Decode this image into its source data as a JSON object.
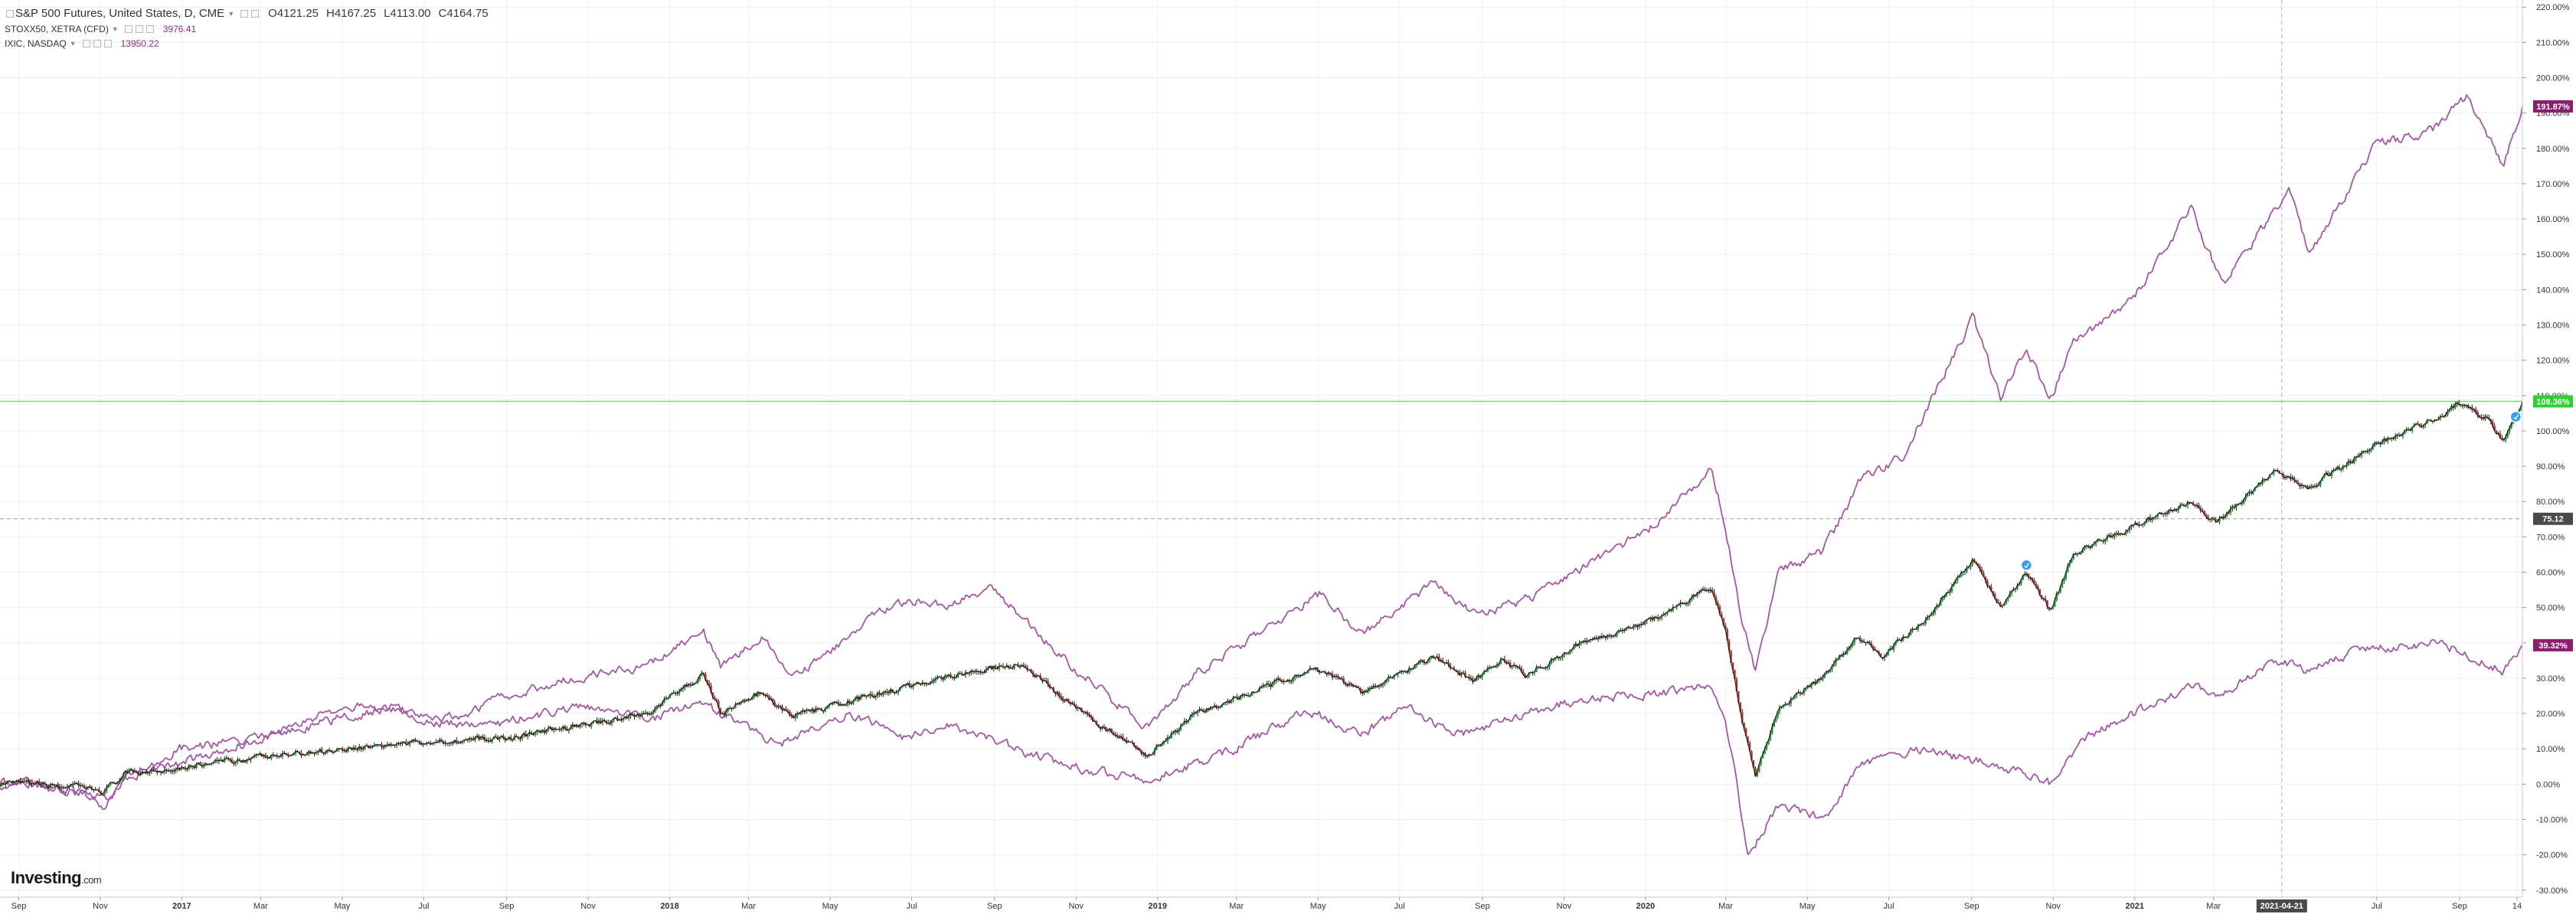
{
  "legend": {
    "main": {
      "title": "S&P 500 Futures, United States, D, CME",
      "open": "O4121.25",
      "high": "H4167.25",
      "low": "L4113.00",
      "close": "C4164.75"
    },
    "compare": [
      {
        "title": "STOXX50, XETRA (CFD)",
        "value": "3976.41",
        "color": "#8e2a8e"
      },
      {
        "title": "IXIC, NASDAQ",
        "value": "13950.22",
        "color": "#8e2a8e"
      }
    ]
  },
  "brand": {
    "logo_text": "Investing",
    "logo_suffix": ".com"
  },
  "colors": {
    "compare_line": "#a358a3",
    "up_candle": "#1f9d2f",
    "down_candle": "#b0302a",
    "main_line": "#111111",
    "label_purple": "#8b1f6e",
    "label_green": "#2fd02f",
    "crosshair_label": "#4a4a4a",
    "event_marker": "#3aa0e6"
  },
  "chart_data": {
    "type": "line",
    "title": "S&P 500 Futures, United States, D, CME",
    "xlabel": "",
    "ylabel": "",
    "x_range": [
      "2016-08-18",
      "2021-10-18"
    ],
    "ylim": [
      -32,
      222
    ],
    "y_scale": "linear",
    "y_tick_unit": "%",
    "y_ticks": [
      -30,
      -20,
      -10,
      0,
      10,
      20,
      30,
      40,
      50,
      60,
      70,
      80,
      90,
      100,
      110,
      120,
      130,
      140,
      150,
      160,
      170,
      180,
      190,
      200,
      210,
      220
    ],
    "y_tick_labels": [
      "-30.00%",
      "-20.00%",
      "-10.00%",
      "0.00%",
      "10.00%",
      "20.00%",
      "30.00%",
      "40.00%",
      "50.00%",
      "60.00%",
      "70.00%",
      "80.00%",
      "90.00%",
      "100.00%",
      "110.00%",
      "120.00%",
      "130.00%",
      "140.00%",
      "150.00%",
      "160.00%",
      "170.00%",
      "180.00%",
      "190.00%",
      "200.00%",
      "210.00%",
      "220.00%"
    ],
    "x_ticks": [
      {
        "date": "2016-09-01",
        "label": "Sep",
        "bold": false
      },
      {
        "date": "2016-11-01",
        "label": "Nov",
        "bold": false
      },
      {
        "date": "2017-01-01",
        "label": "2017",
        "bold": true
      },
      {
        "date": "2017-03-01",
        "label": "Mar",
        "bold": false
      },
      {
        "date": "2017-05-01",
        "label": "May",
        "bold": false
      },
      {
        "date": "2017-07-01",
        "label": "Jul",
        "bold": false
      },
      {
        "date": "2017-09-01",
        "label": "Sep",
        "bold": false
      },
      {
        "date": "2017-11-01",
        "label": "Nov",
        "bold": false
      },
      {
        "date": "2018-01-01",
        "label": "2018",
        "bold": true
      },
      {
        "date": "2018-03-01",
        "label": "Mar",
        "bold": false
      },
      {
        "date": "2018-05-01",
        "label": "May",
        "bold": false
      },
      {
        "date": "2018-07-01",
        "label": "Jul",
        "bold": false
      },
      {
        "date": "2018-09-01",
        "label": "Sep",
        "bold": false
      },
      {
        "date": "2018-11-01",
        "label": "Nov",
        "bold": false
      },
      {
        "date": "2019-01-01",
        "label": "2019",
        "bold": true
      },
      {
        "date": "2019-03-01",
        "label": "Mar",
        "bold": false
      },
      {
        "date": "2019-05-01",
        "label": "May",
        "bold": false
      },
      {
        "date": "2019-07-01",
        "label": "Jul",
        "bold": false
      },
      {
        "date": "2019-09-01",
        "label": "Sep",
        "bold": false
      },
      {
        "date": "2019-11-01",
        "label": "Nov",
        "bold": false
      },
      {
        "date": "2020-01-01",
        "label": "2020",
        "bold": true
      },
      {
        "date": "2020-03-01",
        "label": "Mar",
        "bold": false
      },
      {
        "date": "2020-05-01",
        "label": "May",
        "bold": false
      },
      {
        "date": "2020-07-01",
        "label": "Jul",
        "bold": false
      },
      {
        "date": "2020-09-01",
        "label": "Sep",
        "bold": false
      },
      {
        "date": "2020-11-01",
        "label": "Nov",
        "bold": false
      },
      {
        "date": "2021-01-01",
        "label": "2021",
        "bold": true
      },
      {
        "date": "2021-03-01",
        "label": "Mar",
        "bold": false
      },
      {
        "date": "2021-07-01",
        "label": "Jul",
        "bold": false
      },
      {
        "date": "2021-09-01",
        "label": "Sep",
        "bold": false
      },
      {
        "date": "2021-10-14",
        "label": "14",
        "bold": false
      }
    ],
    "crosshair": {
      "date": "2021-04-21",
      "date_label": "2021-04-21",
      "value": 75.12,
      "value_label": "75.12"
    },
    "horizontal_line": {
      "value": 108.36,
      "color": "#7ed67e"
    },
    "series": [
      {
        "name": "S&P 500 Futures, United States, D, CME",
        "style": "candles",
        "last_value": 108.36,
        "last_label": "108.36%",
        "points": [
          [
            "2016-08-18",
            0
          ],
          [
            "2016-09-15",
            0
          ],
          [
            "2016-10-15",
            -1
          ],
          [
            "2016-11-04",
            -2
          ],
          [
            "2016-11-20",
            3
          ],
          [
            "2016-12-15",
            4
          ],
          [
            "2017-02-15",
            7
          ],
          [
            "2017-05-01",
            10
          ],
          [
            "2017-07-01",
            12
          ],
          [
            "2017-09-01",
            13
          ],
          [
            "2017-11-01",
            17
          ],
          [
            "2017-12-15",
            20
          ],
          [
            "2018-01-26",
            31
          ],
          [
            "2018-02-09",
            20
          ],
          [
            "2018-03-10",
            26
          ],
          [
            "2018-04-02",
            19
          ],
          [
            "2018-06-01",
            25
          ],
          [
            "2018-08-01",
            31
          ],
          [
            "2018-09-20",
            34
          ],
          [
            "2018-10-30",
            22
          ],
          [
            "2018-12-24",
            8
          ],
          [
            "2019-01-31",
            20
          ],
          [
            "2019-04-30",
            33
          ],
          [
            "2019-06-03",
            26
          ],
          [
            "2019-07-26",
            36
          ],
          [
            "2019-08-26",
            29
          ],
          [
            "2019-09-15",
            35
          ],
          [
            "2019-10-03",
            31
          ],
          [
            "2019-11-15",
            40
          ],
          [
            "2020-01-10",
            47
          ],
          [
            "2020-02-19",
            56
          ],
          [
            "2020-03-01",
            44
          ],
          [
            "2020-03-12",
            20
          ],
          [
            "2020-03-23",
            2
          ],
          [
            "2020-04-10",
            22
          ],
          [
            "2020-05-13",
            30
          ],
          [
            "2020-06-08",
            42
          ],
          [
            "2020-06-26",
            36
          ],
          [
            "2020-08-01",
            48
          ],
          [
            "2020-09-02",
            64
          ],
          [
            "2020-09-23",
            50
          ],
          [
            "2020-10-12",
            60
          ],
          [
            "2020-10-30",
            49
          ],
          [
            "2020-11-16",
            65
          ],
          [
            "2020-12-31",
            73
          ],
          [
            "2021-02-12",
            80
          ],
          [
            "2021-03-04",
            74
          ],
          [
            "2021-04-16",
            89
          ],
          [
            "2021-05-12",
            84
          ],
          [
            "2021-06-30",
            96
          ],
          [
            "2021-08-12",
            103
          ],
          [
            "2021-09-02",
            108
          ],
          [
            "2021-09-20",
            104
          ],
          [
            "2021-10-04",
            97
          ],
          [
            "2021-10-18",
            108.36
          ]
        ]
      },
      {
        "name": "IXIC, NASDAQ",
        "style": "line",
        "last_value": 191.87,
        "last_label": "191.87%",
        "points": [
          [
            "2016-08-18",
            0
          ],
          [
            "2016-09-15",
            0
          ],
          [
            "2016-10-15",
            -2
          ],
          [
            "2016-11-04",
            -6
          ],
          [
            "2016-11-20",
            3
          ],
          [
            "2016-12-31",
            6
          ],
          [
            "2017-03-01",
            13
          ],
          [
            "2017-06-08",
            22
          ],
          [
            "2017-07-10",
            17
          ],
          [
            "2017-09-01",
            25
          ],
          [
            "2017-11-01",
            31
          ],
          [
            "2017-12-15",
            33
          ],
          [
            "2018-01-26",
            44
          ],
          [
            "2018-02-08",
            33
          ],
          [
            "2018-03-12",
            42
          ],
          [
            "2018-04-02",
            30
          ],
          [
            "2018-06-20",
            52
          ],
          [
            "2018-08-01",
            51
          ],
          [
            "2018-08-29",
            56
          ],
          [
            "2018-10-30",
            33
          ],
          [
            "2018-12-24",
            16
          ],
          [
            "2019-02-01",
            32
          ],
          [
            "2019-05-03",
            54
          ],
          [
            "2019-06-03",
            42
          ],
          [
            "2019-07-26",
            57
          ],
          [
            "2019-08-26",
            48
          ],
          [
            "2019-10-02",
            52
          ],
          [
            "2019-11-15",
            61
          ],
          [
            "2020-01-10",
            74
          ],
          [
            "2020-02-19",
            89
          ],
          [
            "2020-03-01",
            73
          ],
          [
            "2020-03-12",
            48
          ],
          [
            "2020-03-23",
            32
          ],
          [
            "2020-04-10",
            60
          ],
          [
            "2020-05-13",
            66
          ],
          [
            "2020-06-10",
            86
          ],
          [
            "2020-07-12",
            93
          ],
          [
            "2020-09-02",
            132
          ],
          [
            "2020-09-23",
            109
          ],
          [
            "2020-10-12",
            124
          ],
          [
            "2020-10-30",
            109
          ],
          [
            "2020-11-16",
            125
          ],
          [
            "2020-12-31",
            138
          ],
          [
            "2021-02-12",
            163
          ],
          [
            "2021-03-08",
            141
          ],
          [
            "2021-04-26",
            168
          ],
          [
            "2021-05-12",
            150
          ],
          [
            "2021-06-30",
            181
          ],
          [
            "2021-08-12",
            185
          ],
          [
            "2021-09-07",
            195
          ],
          [
            "2021-09-20",
            185
          ],
          [
            "2021-10-04",
            175
          ],
          [
            "2021-10-18",
            191.87
          ]
        ]
      },
      {
        "name": "STOXX50, XETRA (CFD)",
        "style": "line",
        "last_value": 39.32,
        "last_label": "39.32%",
        "points": [
          [
            "2016-08-18",
            1
          ],
          [
            "2016-09-15",
            0
          ],
          [
            "2016-11-04",
            -4
          ],
          [
            "2016-11-20",
            1
          ],
          [
            "2016-12-31",
            10
          ],
          [
            "2017-02-15",
            12
          ],
          [
            "2017-05-05",
            22
          ],
          [
            "2017-06-15",
            21
          ],
          [
            "2017-08-10",
            16
          ],
          [
            "2017-09-30",
            20
          ],
          [
            "2017-11-01",
            22
          ],
          [
            "2017-12-15",
            18
          ],
          [
            "2018-01-23",
            23
          ],
          [
            "2018-03-23",
            11
          ],
          [
            "2018-05-15",
            20
          ],
          [
            "2018-06-28",
            13
          ],
          [
            "2018-07-26",
            17
          ],
          [
            "2018-10-26",
            5
          ],
          [
            "2018-12-27",
            1
          ],
          [
            "2019-02-28",
            10
          ],
          [
            "2019-04-23",
            21
          ],
          [
            "2019-06-03",
            14
          ],
          [
            "2019-07-04",
            22
          ],
          [
            "2019-08-15",
            14
          ],
          [
            "2019-10-01",
            20
          ],
          [
            "2019-11-15",
            24
          ],
          [
            "2020-01-20",
            26
          ],
          [
            "2020-02-19",
            28
          ],
          [
            "2020-03-01",
            18
          ],
          [
            "2020-03-18",
            -20
          ],
          [
            "2020-04-10",
            -6
          ],
          [
            "2020-05-13",
            -10
          ],
          [
            "2020-06-08",
            5
          ],
          [
            "2020-07-21",
            10
          ],
          [
            "2020-09-25",
            5
          ],
          [
            "2020-10-30",
            0
          ],
          [
            "2020-11-25",
            13
          ],
          [
            "2020-12-31",
            20
          ],
          [
            "2021-02-12",
            28
          ],
          [
            "2021-03-08",
            25
          ],
          [
            "2021-04-16",
            35
          ],
          [
            "2021-05-12",
            32
          ],
          [
            "2021-06-15",
            38
          ],
          [
            "2021-08-12",
            40
          ],
          [
            "2021-09-01",
            38
          ],
          [
            "2021-10-04",
            32
          ],
          [
            "2021-10-18",
            39.32
          ]
        ]
      }
    ],
    "event_markers": [
      {
        "date": "2020-10-12",
        "value": 62
      },
      {
        "date": "2021-10-13",
        "value": 104
      }
    ]
  }
}
